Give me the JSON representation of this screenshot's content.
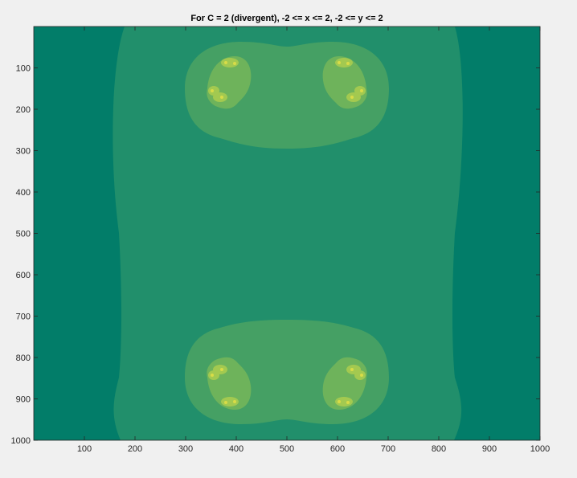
{
  "figure": {
    "background": "#f0f0f0",
    "colors": {
      "level0": "#027d69",
      "level1": "#218f6b",
      "level2": "#45a064",
      "level3": "#6eb35b",
      "level4": "#a3c950",
      "level5": "#d8dc48",
      "axis": "#262626"
    }
  },
  "chart_data": {
    "type": "heatmap",
    "title": "For C = 2 (divergent), -2 <= x <= 2, -2 <= y <= 2",
    "xlabel": "",
    "ylabel": "",
    "xlim": [
      0,
      1000
    ],
    "ylim": [
      1000,
      0
    ],
    "y_direction": "reversed",
    "grid": false,
    "legend": "none",
    "x_ticks": [
      "100",
      "200",
      "300",
      "400",
      "500",
      "600",
      "700",
      "800",
      "900",
      "1000"
    ],
    "y_ticks": [
      "100",
      "200",
      "300",
      "400",
      "500",
      "600",
      "700",
      "800",
      "900",
      "1000"
    ],
    "regions": [
      {
        "level": 0,
        "description": "outer background"
      },
      {
        "level": 1,
        "center": [
          500,
          500
        ]
      },
      {
        "level": 2,
        "center": [
          500,
          185
        ]
      },
      {
        "level": 2,
        "center": [
          500,
          815
        ]
      },
      {
        "level": 3,
        "center": [
          375,
          135
        ]
      },
      {
        "level": 3,
        "center": [
          625,
          135
        ]
      },
      {
        "level": 3,
        "center": [
          375,
          865
        ]
      },
      {
        "level": 3,
        "center": [
          625,
          865
        ]
      }
    ]
  }
}
